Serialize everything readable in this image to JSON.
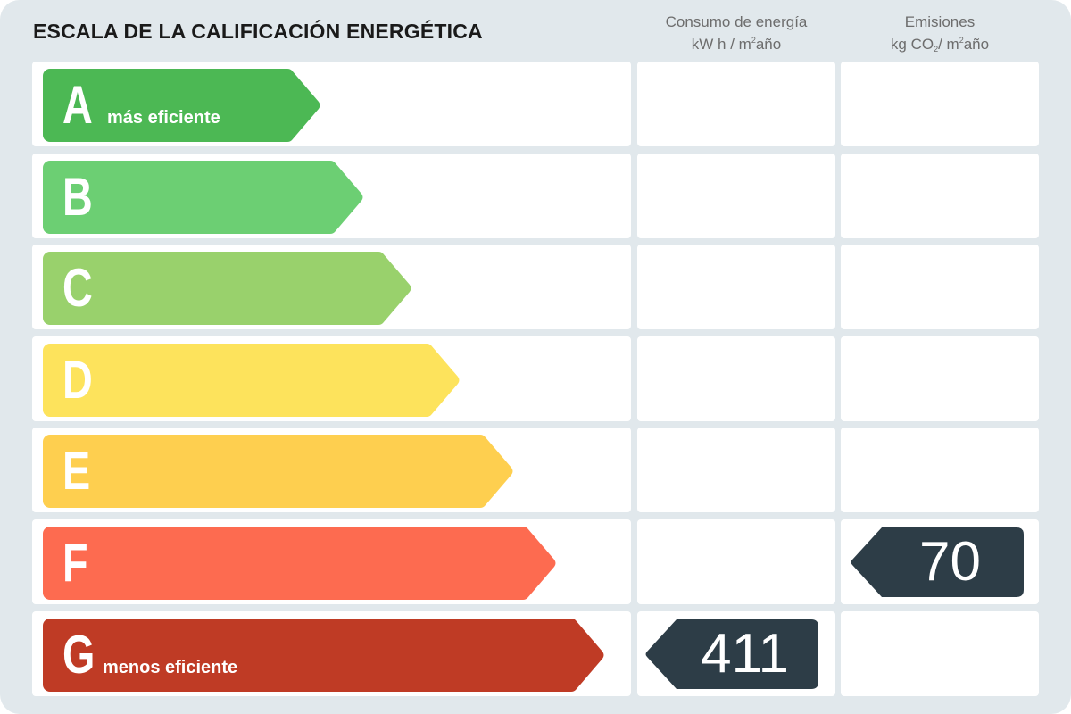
{
  "title": "ESCALA DE LA CALIFICACIÓN ENERGÉTICA",
  "columns": {
    "consumo": {
      "line1": "Consumo de energía",
      "line2_pre": "kW h / m",
      "line2_sup": "2",
      "line2_post": "año"
    },
    "emisiones": {
      "line1": "Emisiones",
      "line2_pre": "kg CO",
      "line2_sub": "2",
      "line2_mid": "/ m",
      "line2_sup": "2",
      "line2_post": "año"
    }
  },
  "ratings": [
    {
      "letter": "A",
      "label": "más eficiente",
      "color": "#4cb854"
    },
    {
      "letter": "B",
      "label": "",
      "color": "#6ccf73"
    },
    {
      "letter": "C",
      "label": "",
      "color": "#99d16c"
    },
    {
      "letter": "D",
      "label": "",
      "color": "#fde35c"
    },
    {
      "letter": "E",
      "label": "",
      "color": "#fecf4f"
    },
    {
      "letter": "F",
      "label": "",
      "color": "#fd6b50"
    },
    {
      "letter": "G",
      "label": "menos eficiente",
      "color": "#bf3b25"
    }
  ],
  "consumo_value": {
    "rating": "G",
    "value": "411"
  },
  "emisiones_value": {
    "rating": "F",
    "value": "70"
  },
  "badge_color": "#2d3d47"
}
